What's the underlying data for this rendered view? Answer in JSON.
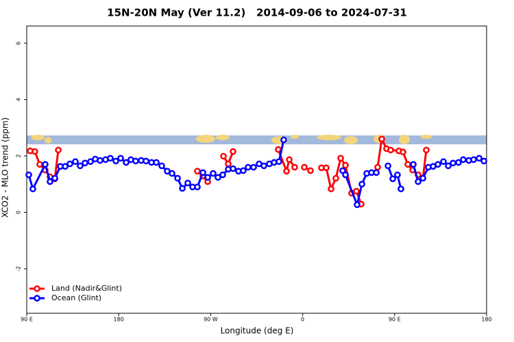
{
  "chart_data": {
    "type": "line",
    "title": "15N-20N May (Ver 11.2)   2014-09-06 to 2024-07-31",
    "xlabel": "Longitude (deg E)",
    "ylabel": "XCO2 - MLO trend (ppm)",
    "xlim": [
      90,
      540
    ],
    "ylim": [
      -3.58,
      6.61
    ],
    "xticks": [
      {
        "value": 90,
        "label": "90 E"
      },
      180,
      {
        "value": 270,
        "label": "90 W"
      },
      {
        "value": 360,
        "label": "0"
      },
      {
        "value": 450,
        "label": "90 E"
      },
      {
        "value": 540,
        "label": "180"
      }
    ],
    "yticks": [
      -2,
      0,
      2,
      4,
      6
    ],
    "legend": "bottom-left",
    "series": [
      {
        "name": "Land (Nadir&Glint)",
        "color": "#ff0000",
        "x": [
          93.4,
          98.0,
          102.7,
          108.1,
          112.8,
          117.5,
          120.9,
          null,
          257.0,
          262.4,
          267.1,
          null,
          282.5,
          287.2,
          291.9,
          null,
          336.1,
          344.2,
          346.9,
          352.2,
          null,
          361.6,
          367.7,
          null,
          378.4,
          383.1,
          387.8,
          392.5,
          397.2,
          401.9,
          407.9,
          412.6,
          417.3,
          null,
          433.4,
          437.4,
          442.1,
          446.1,
          454.2,
          458.2,
          462.9,
          467.6,
          473.0,
          477.7,
          481.0
        ],
        "values": [
          2.18,
          2.16,
          1.7,
          1.5,
          1.26,
          1.19,
          2.21,
          null,
          1.46,
          1.29,
          1.09,
          null,
          1.99,
          1.72,
          2.16,
          null,
          2.23,
          1.46,
          1.87,
          1.6,
          null,
          1.6,
          1.48,
          null,
          1.58,
          1.58,
          0.83,
          1.21,
          1.92,
          1.67,
          0.68,
          0.75,
          0.29,
          null,
          1.6,
          2.6,
          2.26,
          2.21,
          2.18,
          2.14,
          1.7,
          1.5,
          1.33,
          1.21,
          2.21
        ]
      },
      {
        "name": "Ocean (Glint)",
        "color": "#0000ff",
        "x": [
          92.0,
          96.0,
          108.1,
          112.8,
          117.5,
          122.9,
          127.6,
          132.3,
          137.6,
          142.3,
          147.0,
          152.4,
          157.1,
          161.8,
          167.1,
          171.8,
          177.2,
          181.9,
          187.3,
          191.9,
          196.6,
          202.0,
          206.7,
          212.1,
          216.8,
          222.1,
          227.5,
          232.2,
          237.6,
          242.3,
          247.6,
          252.3,
          257.0,
          262.4,
          267.1,
          272.4,
          277.1,
          281.8,
          287.2,
          291.9,
          297.2,
          301.9,
          306.6,
          312.0,
          317.4,
          322.1,
          327.4,
          332.1,
          336.8,
          341.5,
          null,
          399.2,
          401.9,
          413.3,
          418.0,
          422.7,
          427.4,
          432.1,
          null,
          443.5,
          448.2,
          452.8,
          456.2,
          null,
          468.3,
          473.0,
          477.7,
          483.0,
          487.7,
          492.4,
          497.8,
          502.5,
          507.2,
          512.5,
          517.2,
          522.6,
          527.3,
          532.7,
          537.4
        ],
        "values": [
          1.33,
          0.83,
          1.7,
          1.09,
          1.21,
          1.63,
          1.63,
          1.72,
          1.8,
          1.65,
          1.75,
          1.8,
          1.89,
          1.84,
          1.87,
          1.92,
          1.82,
          1.92,
          1.77,
          1.87,
          1.82,
          1.84,
          1.82,
          1.77,
          1.77,
          1.65,
          1.46,
          1.38,
          1.21,
          0.85,
          1.04,
          0.9,
          0.9,
          1.41,
          1.24,
          1.38,
          1.24,
          1.33,
          1.53,
          1.55,
          1.46,
          1.48,
          1.6,
          1.6,
          1.72,
          1.65,
          1.72,
          1.77,
          1.8,
          2.57,
          null,
          1.48,
          1.33,
          0.27,
          1.0,
          1.38,
          1.41,
          1.41,
          null,
          1.65,
          1.19,
          1.33,
          0.83,
          null,
          1.7,
          1.09,
          1.21,
          1.6,
          1.63,
          1.7,
          1.8,
          1.65,
          1.75,
          1.77,
          1.87,
          1.84,
          1.87,
          1.92,
          1.82
        ]
      }
    ]
  }
}
